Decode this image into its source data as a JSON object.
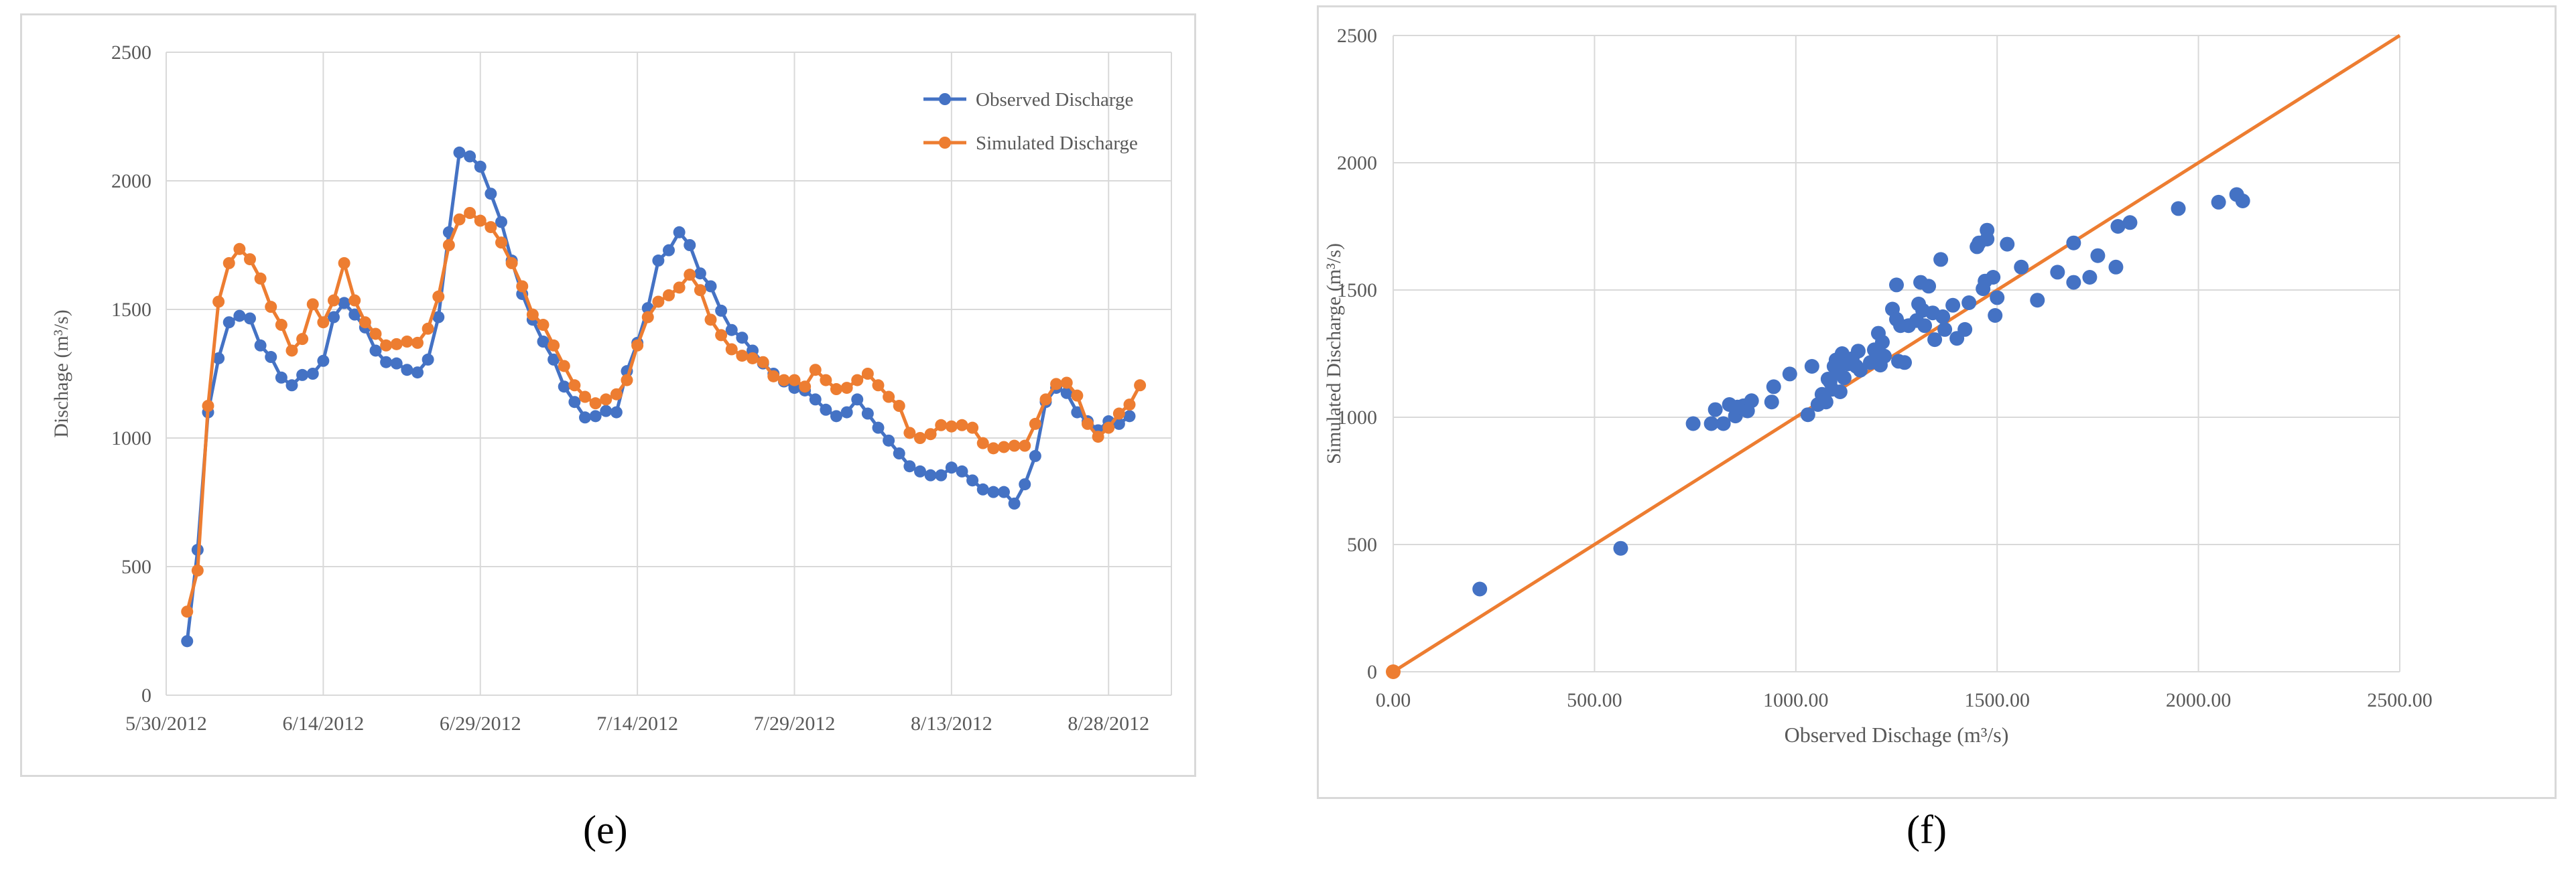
{
  "labels": {
    "e": "(e)",
    "f": "(f)"
  },
  "colors": {
    "observed": "#4472c4",
    "simulated": "#ed7d31",
    "grid": "#d9d9d9"
  },
  "chart_data": [
    {
      "id": "e",
      "type": "line",
      "title": "",
      "xlabel": "",
      "ylabel": "Dischage (m³/s)",
      "ylim": [
        0,
        2500
      ],
      "yticks": [
        0,
        500,
        1000,
        1500,
        2000,
        2500
      ],
      "xlim": [
        "2012-05-30",
        "2012-09-03"
      ],
      "xticks": [
        "5/30/2012",
        "6/14/2012",
        "6/29/2012",
        "7/14/2012",
        "7/29/2012",
        "8/13/2012",
        "8/28/2012"
      ],
      "x_start": "2012-06-01",
      "grid": "vertical and horizontal",
      "legend": "top-right",
      "series": [
        {
          "name": "Observed Discharge",
          "color": "#4472c4",
          "values": [
            210,
            565,
            1100,
            1310,
            1450,
            1475,
            1465,
            1360,
            1315,
            1235,
            1205,
            1245,
            1250,
            1300,
            1470,
            1525,
            1480,
            1430,
            1340,
            1295,
            1290,
            1265,
            1255,
            1305,
            1470,
            1800,
            2110,
            2095,
            2055,
            1950,
            1840,
            1690,
            1560,
            1460,
            1375,
            1305,
            1200,
            1140,
            1080,
            1085,
            1105,
            1100,
            1260,
            1370,
            1505,
            1690,
            1730,
            1800,
            1750,
            1640,
            1590,
            1495,
            1420,
            1390,
            1340,
            1290,
            1250,
            1220,
            1195,
            1185,
            1150,
            1110,
            1085,
            1100,
            1150,
            1095,
            1040,
            990,
            940,
            890,
            870,
            855,
            855,
            885,
            870,
            835,
            800,
            790,
            790,
            745,
            820,
            930,
            1140,
            1195,
            1175,
            1100,
            1065,
            1030,
            1065,
            1055,
            1085
          ]
        },
        {
          "name": "Simulated Discharge",
          "color": "#ed7d31",
          "values": [
            325,
            485,
            1125,
            1530,
            1680,
            1735,
            1695,
            1620,
            1510,
            1440,
            1340,
            1385,
            1520,
            1450,
            1535,
            1680,
            1535,
            1450,
            1405,
            1360,
            1365,
            1375,
            1370,
            1425,
            1550,
            1750,
            1850,
            1875,
            1845,
            1820,
            1760,
            1680,
            1590,
            1480,
            1440,
            1360,
            1280,
            1205,
            1160,
            1135,
            1150,
            1170,
            1225,
            1360,
            1470,
            1530,
            1555,
            1585,
            1635,
            1575,
            1460,
            1400,
            1345,
            1320,
            1310,
            1295,
            1240,
            1225,
            1225,
            1200,
            1265,
            1225,
            1190,
            1195,
            1225,
            1250,
            1205,
            1160,
            1125,
            1020,
            1000,
            1015,
            1050,
            1045,
            1050,
            1040,
            980,
            960,
            965,
            970,
            970,
            1055,
            1150,
            1210,
            1215,
            1165,
            1055,
            1005,
            1040,
            1095,
            1130,
            1205
          ]
        }
      ]
    },
    {
      "id": "f",
      "type": "scatter",
      "title": "",
      "xlabel": "Observed Dischage (m³/s)",
      "ylabel": "Simulated Discharge (m³/s)",
      "xlim": [
        0,
        2500
      ],
      "ylim": [
        0,
        2500
      ],
      "xticks": [
        "0.00",
        "500.00",
        "1000.00",
        "1500.00",
        "2000.00",
        "2500.00"
      ],
      "yticks": [
        "0",
        "500",
        "1000",
        "1500",
        "2000",
        "2500"
      ],
      "grid": "vertical and horizontal",
      "legend": "none",
      "reference_line": {
        "from": [
          0,
          0
        ],
        "to": [
          2500,
          2500
        ],
        "color": "#ed7d31"
      },
      "points": [
        [
          0,
          0
        ],
        [
          215,
          325
        ],
        [
          565,
          485
        ],
        [
          745,
          975
        ],
        [
          790,
          975
        ],
        [
          800,
          1030
        ],
        [
          820,
          975
        ],
        [
          835,
          1050
        ],
        [
          850,
          1005
        ],
        [
          855,
          1040
        ],
        [
          870,
          1045
        ],
        [
          880,
          1025
        ],
        [
          890,
          1065
        ],
        [
          940,
          1060
        ],
        [
          945,
          1120
        ],
        [
          985,
          1170
        ],
        [
          1030,
          1010
        ],
        [
          1040,
          1200
        ],
        [
          1055,
          1050
        ],
        [
          1065,
          1090
        ],
        [
          1075,
          1060
        ],
        [
          1080,
          1150
        ],
        [
          1085,
          1140
        ],
        [
          1090,
          1110
        ],
        [
          1095,
          1200
        ],
        [
          1100,
          1225
        ],
        [
          1105,
          1175
        ],
        [
          1110,
          1100
        ],
        [
          1115,
          1250
        ],
        [
          1120,
          1155
        ],
        [
          1130,
          1210
        ],
        [
          1140,
          1230
        ],
        [
          1150,
          1200
        ],
        [
          1155,
          1260
        ],
        [
          1160,
          1185
        ],
        [
          1185,
          1215
        ],
        [
          1195,
          1265
        ],
        [
          1200,
          1225
        ],
        [
          1205,
          1330
        ],
        [
          1210,
          1205
        ],
        [
          1215,
          1295
        ],
        [
          1220,
          1240
        ],
        [
          1240,
          1425
        ],
        [
          1250,
          1385
        ],
        [
          1250,
          1520
        ],
        [
          1255,
          1220
        ],
        [
          1260,
          1360
        ],
        [
          1270,
          1215
        ],
        [
          1280,
          1360
        ],
        [
          1300,
          1380
        ],
        [
          1305,
          1445
        ],
        [
          1310,
          1530
        ],
        [
          1315,
          1420
        ],
        [
          1320,
          1360
        ],
        [
          1330,
          1515
        ],
        [
          1340,
          1410
        ],
        [
          1345,
          1305
        ],
        [
          1360,
          1620
        ],
        [
          1365,
          1395
        ],
        [
          1370,
          1345
        ],
        [
          1390,
          1440
        ],
        [
          1400,
          1310
        ],
        [
          1420,
          1345
        ],
        [
          1430,
          1450
        ],
        [
          1450,
          1670
        ],
        [
          1455,
          1685
        ],
        [
          1465,
          1505
        ],
        [
          1470,
          1535
        ],
        [
          1475,
          1700
        ],
        [
          1475,
          1735
        ],
        [
          1490,
          1550
        ],
        [
          1495,
          1400
        ],
        [
          1500,
          1470
        ],
        [
          1525,
          1680
        ],
        [
          1560,
          1590
        ],
        [
          1600,
          1460
        ],
        [
          1650,
          1570
        ],
        [
          1690,
          1530
        ],
        [
          1690,
          1685
        ],
        [
          1730,
          1550
        ],
        [
          1750,
          1635
        ],
        [
          1795,
          1590
        ],
        [
          1800,
          1750
        ],
        [
          1830,
          1765
        ],
        [
          1950,
          1820
        ],
        [
          2050,
          1845
        ],
        [
          2095,
          1875
        ],
        [
          2110,
          1850
        ]
      ]
    }
  ]
}
